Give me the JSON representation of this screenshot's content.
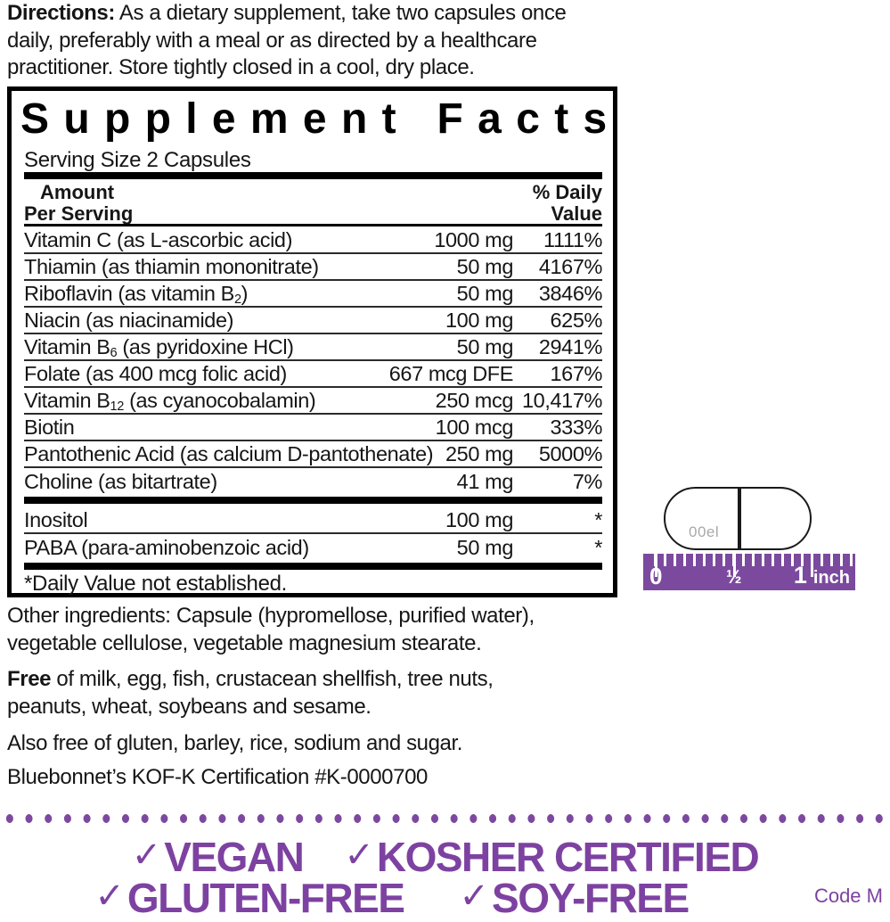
{
  "colors": {
    "accent_purple": "#7b4a9e",
    "badge_purple": "#7d42a1",
    "capsule_code_gray": "#a9a9a9",
    "text_black": "#161616"
  },
  "directions": {
    "label": "Directions:",
    "line1_rest": " As a dietary supplement, take two capsules once",
    "line2": "daily, preferably with a meal or as directed by a healthcare",
    "line3": "practitioner. Store tightly closed in a cool, dry place."
  },
  "supplement_facts": {
    "title": "Supplement Facts",
    "serving_size": "Serving Size 2 Capsules",
    "header": {
      "amount_line1": "Amount",
      "amount_line2": "Per Serving",
      "dv_line1": "% Daily",
      "dv_line2": "Value"
    },
    "rows": [
      {
        "pre": "Vitamin C (as L-ascorbic acid)",
        "sub": "",
        "post": "",
        "amount": "1000 mg",
        "dv": "1111%"
      },
      {
        "pre": "Thiamin (as thiamin mononitrate)",
        "sub": "",
        "post": "",
        "amount": "50 mg",
        "dv": "4167%"
      },
      {
        "pre": "Riboflavin (as vitamin B",
        "sub": "2",
        "post": ")",
        "amount": "50 mg",
        "dv": "3846%"
      },
      {
        "pre": "Niacin (as niacinamide)",
        "sub": "",
        "post": "",
        "amount": "100 mg",
        "dv": "625%"
      },
      {
        "pre": "Vitamin B",
        "sub": "6",
        "post": " (as pyridoxine HCl)",
        "amount": "50 mg",
        "dv": "2941%"
      },
      {
        "pre": "Folate (as 400 mcg folic acid)",
        "sub": "",
        "post": "",
        "amount": "667 mcg DFE",
        "dv": "167%"
      },
      {
        "pre": "Vitamin B",
        "sub": "12",
        "post": " (as cyanocobalamin)",
        "amount": "250 mcg",
        "dv": "10,417%"
      },
      {
        "pre": "Biotin",
        "sub": "",
        "post": "",
        "amount": "100 mcg",
        "dv": "333%"
      },
      {
        "pre": "Pantothenic Acid (as calcium D-pantothenate)",
        "sub": "",
        "post": "",
        "amount": "250 mg",
        "dv": "5000%"
      },
      {
        "pre": "Choline (as bitartrate)",
        "sub": "",
        "post": "",
        "amount": "41 mg",
        "dv": "7%"
      }
    ],
    "rows_secondary": [
      {
        "pre": "Inositol",
        "sub": "",
        "post": "",
        "amount": "100 mg",
        "dv": "*"
      },
      {
        "pre": "PABA (para-aminobenzoic acid)",
        "sub": "",
        "post": "",
        "amount": "50 mg",
        "dv": "*"
      }
    ],
    "footnote": "*Daily Value not established."
  },
  "capsule": {
    "code": "00el"
  },
  "ruler": {
    "label_0": "0",
    "label_half": "½",
    "label_1": "1",
    "label_unit": "inch"
  },
  "other_ingredients": {
    "line1": "Other ingredients: Capsule (hypromellose, purified water),",
    "line2": "vegetable cellulose, vegetable magnesium stearate."
  },
  "allergen_free": {
    "bold": "Free",
    "line1_rest": " of milk, egg, fish, crustacean shellfish, tree nuts,",
    "line2": "peanuts, wheat, soybeans and sesame."
  },
  "also_free": "Also free of gluten, barley, rice, sodium and sugar.",
  "certification": "Bluebonnet’s KOF-K Certification #K-0000700",
  "badges": {
    "check": "✓",
    "row1": [
      "VEGAN",
      "KOSHER CERTIFIED"
    ],
    "row2": [
      "GLUTEN-FREE",
      "SOY-FREE"
    ]
  },
  "code": "Code M"
}
